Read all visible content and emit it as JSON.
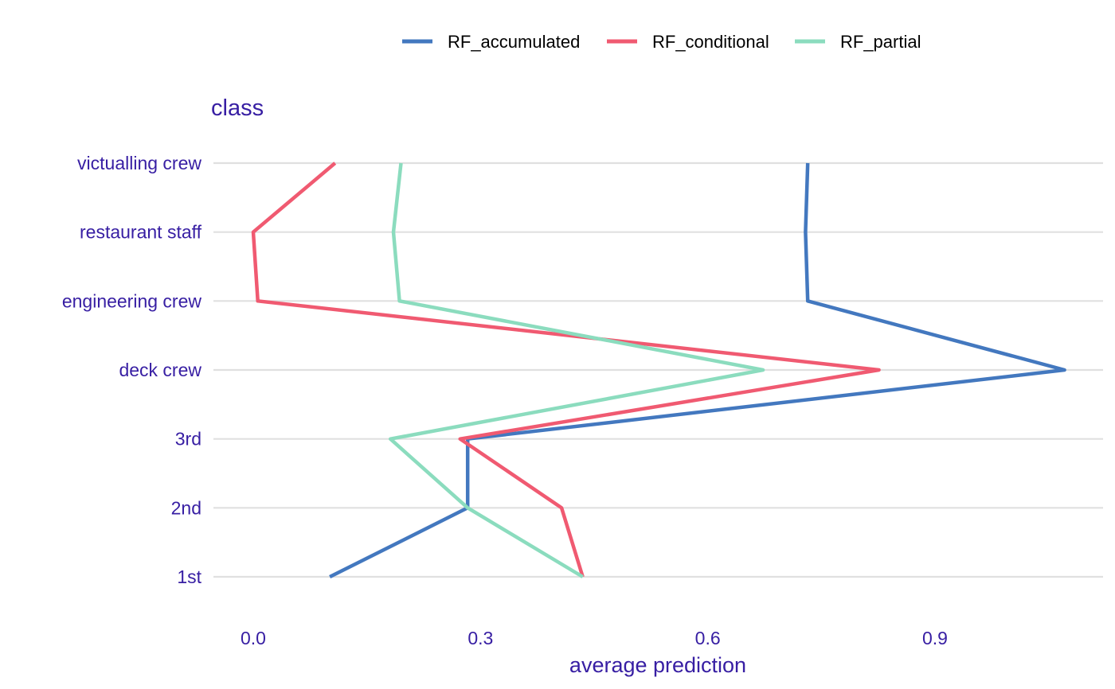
{
  "chart_data": {
    "type": "line",
    "panel_title": "class",
    "xlabel": "average prediction",
    "ylabel": "",
    "categories": [
      "1st",
      "2nd",
      "3rd",
      "deck crew",
      "engineering crew",
      "restaurant staff",
      "victualling crew"
    ],
    "xlim": [
      -0.05,
      1.12
    ],
    "x_ticks": [
      0.0,
      0.3,
      0.6,
      0.9
    ],
    "x_tick_labels": [
      "0.0",
      "0.3",
      "0.6",
      "0.9"
    ],
    "grid": true,
    "legend_position": "top",
    "text_color": "#371ea3",
    "grid_color": "#e0e0e0",
    "series": [
      {
        "name": "RF_accumulated",
        "color": "#4378bf",
        "values": [
          0.101,
          0.283,
          0.283,
          1.071,
          0.732,
          0.729,
          0.732
        ]
      },
      {
        "name": "RF_conditional",
        "color": "#f05a71",
        "values": [
          0.435,
          0.407,
          0.273,
          0.826,
          0.006,
          0.0,
          0.108
        ]
      },
      {
        "name": "RF_partial",
        "color": "#8bdcbe",
        "values": [
          0.435,
          0.283,
          0.181,
          0.673,
          0.193,
          0.185,
          0.195
        ]
      }
    ]
  }
}
